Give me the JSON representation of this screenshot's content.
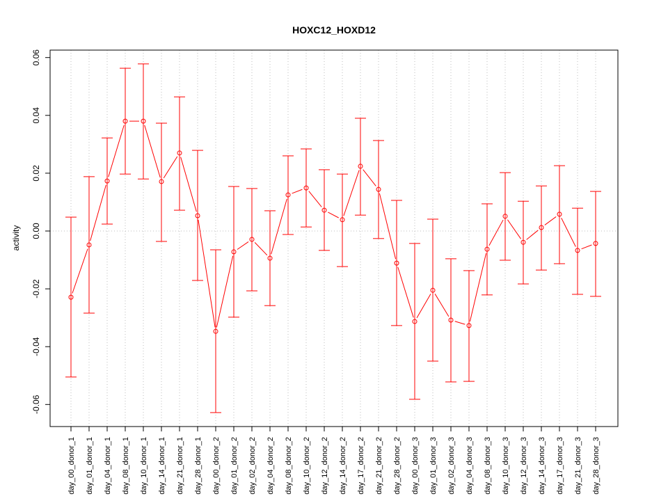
{
  "chart_data": {
    "type": "line",
    "title": "HOXC12_HOXD12",
    "xlabel": "",
    "ylabel": "activity",
    "ylim": [
      -0.068,
      0.062
    ],
    "yticks": [
      -0.06,
      -0.04,
      -0.02,
      0.0,
      0.02,
      0.04,
      0.06
    ],
    "ytick_labels": [
      "-0.06",
      "-0.04",
      "-0.02",
      "0.00",
      "0.02",
      "0.04",
      "0.06"
    ],
    "grid": true,
    "colors": {
      "series": "#ff0000",
      "grid": "#bebebe",
      "axis": "#000000"
    },
    "categories": [
      "day_00_donor_1",
      "day_01_donor_1",
      "day_04_donor_1",
      "day_08_donor_1",
      "day_10_donor_1",
      "day_14_donor_1",
      "day_21_donor_1",
      "day_28_donor_1",
      "day_00_donor_2",
      "day_01_donor_2",
      "day_02_donor_2",
      "day_04_donor_2",
      "day_08_donor_2",
      "day_10_donor_2",
      "day_12_donor_2",
      "day_14_donor_2",
      "day_17_donor_2",
      "day_21_donor_2",
      "day_28_donor_2",
      "day_00_donor_3",
      "day_01_donor_3",
      "day_02_donor_3",
      "day_04_donor_3",
      "day_08_donor_3",
      "day_10_donor_3",
      "day_12_donor_3",
      "day_14_donor_3",
      "day_17_donor_3",
      "day_21_donor_3",
      "day_28_donor_3"
    ],
    "series": [
      {
        "name": "activity",
        "values": [
          -0.0229,
          -0.0048,
          0.0173,
          0.038,
          0.038,
          0.0171,
          0.027,
          0.0053,
          -0.0347,
          -0.0072,
          -0.0029,
          -0.0094,
          0.0125,
          0.0149,
          0.0072,
          0.0039,
          0.0224,
          0.0144,
          -0.0111,
          -0.0313,
          -0.0205,
          -0.0308,
          -0.0327,
          -0.0063,
          0.0051,
          -0.0039,
          0.0012,
          0.0058,
          -0.0067,
          -0.0043
        ],
        "upper": [
          0.0048,
          0.0188,
          0.0322,
          0.0563,
          0.0578,
          0.0373,
          0.0464,
          0.0279,
          -0.0065,
          0.0154,
          0.0147,
          0.007,
          0.026,
          0.0284,
          0.0212,
          0.0197,
          0.039,
          0.0313,
          0.0106,
          -0.0043,
          0.0041,
          -0.0096,
          -0.0137,
          0.0094,
          0.0202,
          0.0103,
          0.0156,
          0.0226,
          0.0079,
          0.0137
        ],
        "lower": [
          -0.0505,
          -0.0284,
          0.0024,
          0.0197,
          0.018,
          -0.0036,
          0.0072,
          -0.0171,
          -0.0628,
          -0.0298,
          -0.0207,
          -0.0258,
          -0.0012,
          0.0014,
          -0.0067,
          -0.0123,
          0.0055,
          -0.0026,
          -0.0327,
          -0.0582,
          -0.045,
          -0.0522,
          -0.052,
          -0.0221,
          -0.0101,
          -0.0183,
          -0.0135,
          -0.0113,
          -0.0219,
          -0.0226
        ]
      }
    ]
  }
}
